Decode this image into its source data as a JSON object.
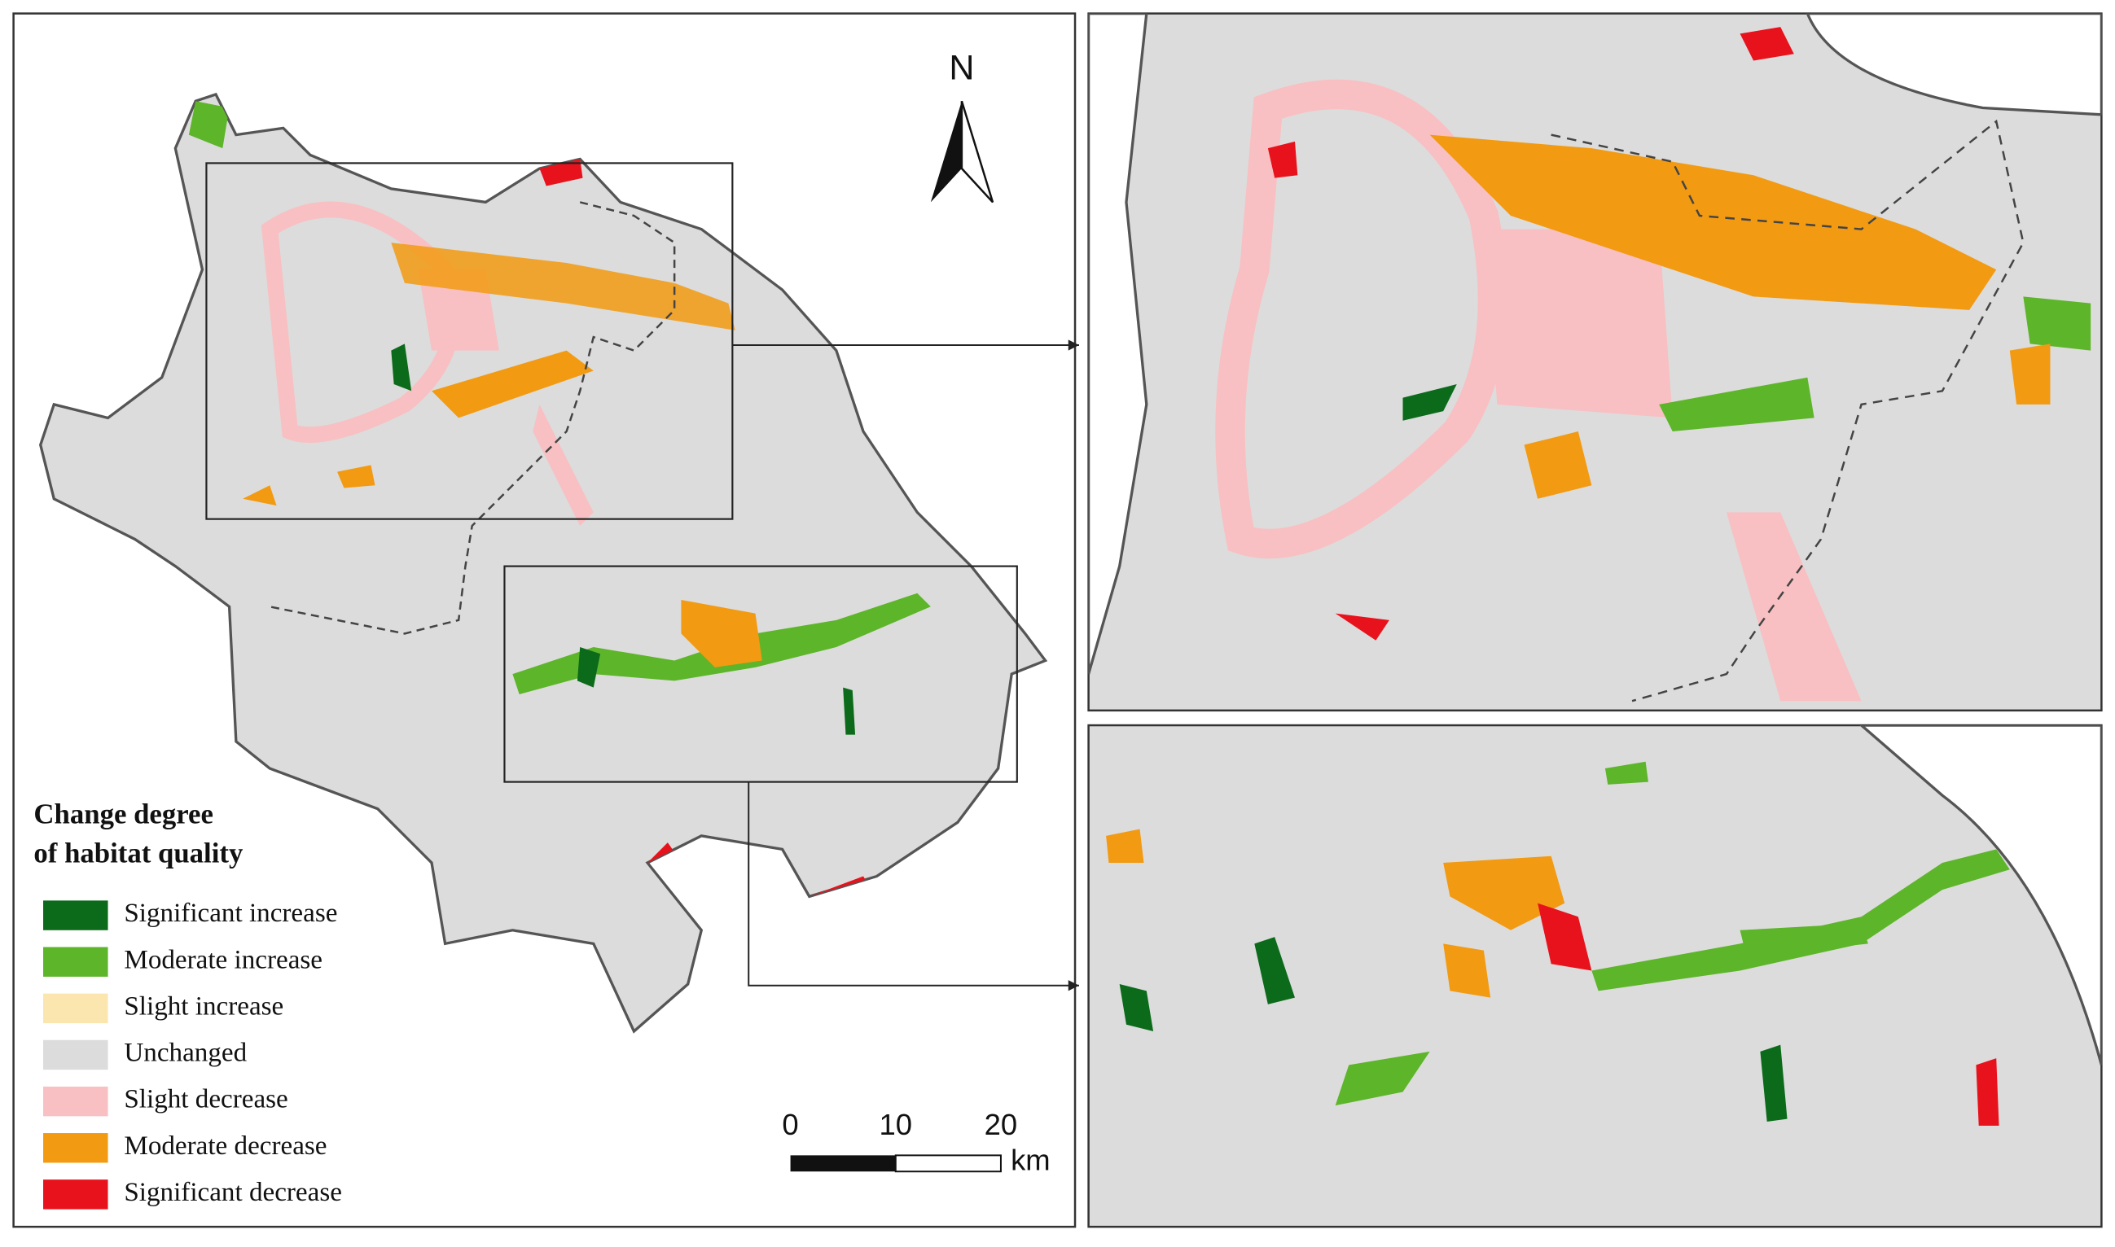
{
  "legend": {
    "title": [
      "Change degree",
      "of habitat quality"
    ],
    "items": [
      {
        "label": "Significant increase",
        "color": "#0b6b1a"
      },
      {
        "label": "Moderate increase",
        "color": "#5db52a"
      },
      {
        "label": "Slight increase",
        "color": "#fbe6b0"
      },
      {
        "label": "Unchanged",
        "color": "#dcdcdc"
      },
      {
        "label": "Slight decrease",
        "color": "#f8c0c2"
      },
      {
        "label": "Moderate decrease",
        "color": "#f29a12"
      },
      {
        "label": "Significant decrease",
        "color": "#e8121c"
      }
    ]
  },
  "north_arrow": "N",
  "scale_bar": {
    "ticks": [
      0,
      10,
      20
    ],
    "unit": "km"
  }
}
